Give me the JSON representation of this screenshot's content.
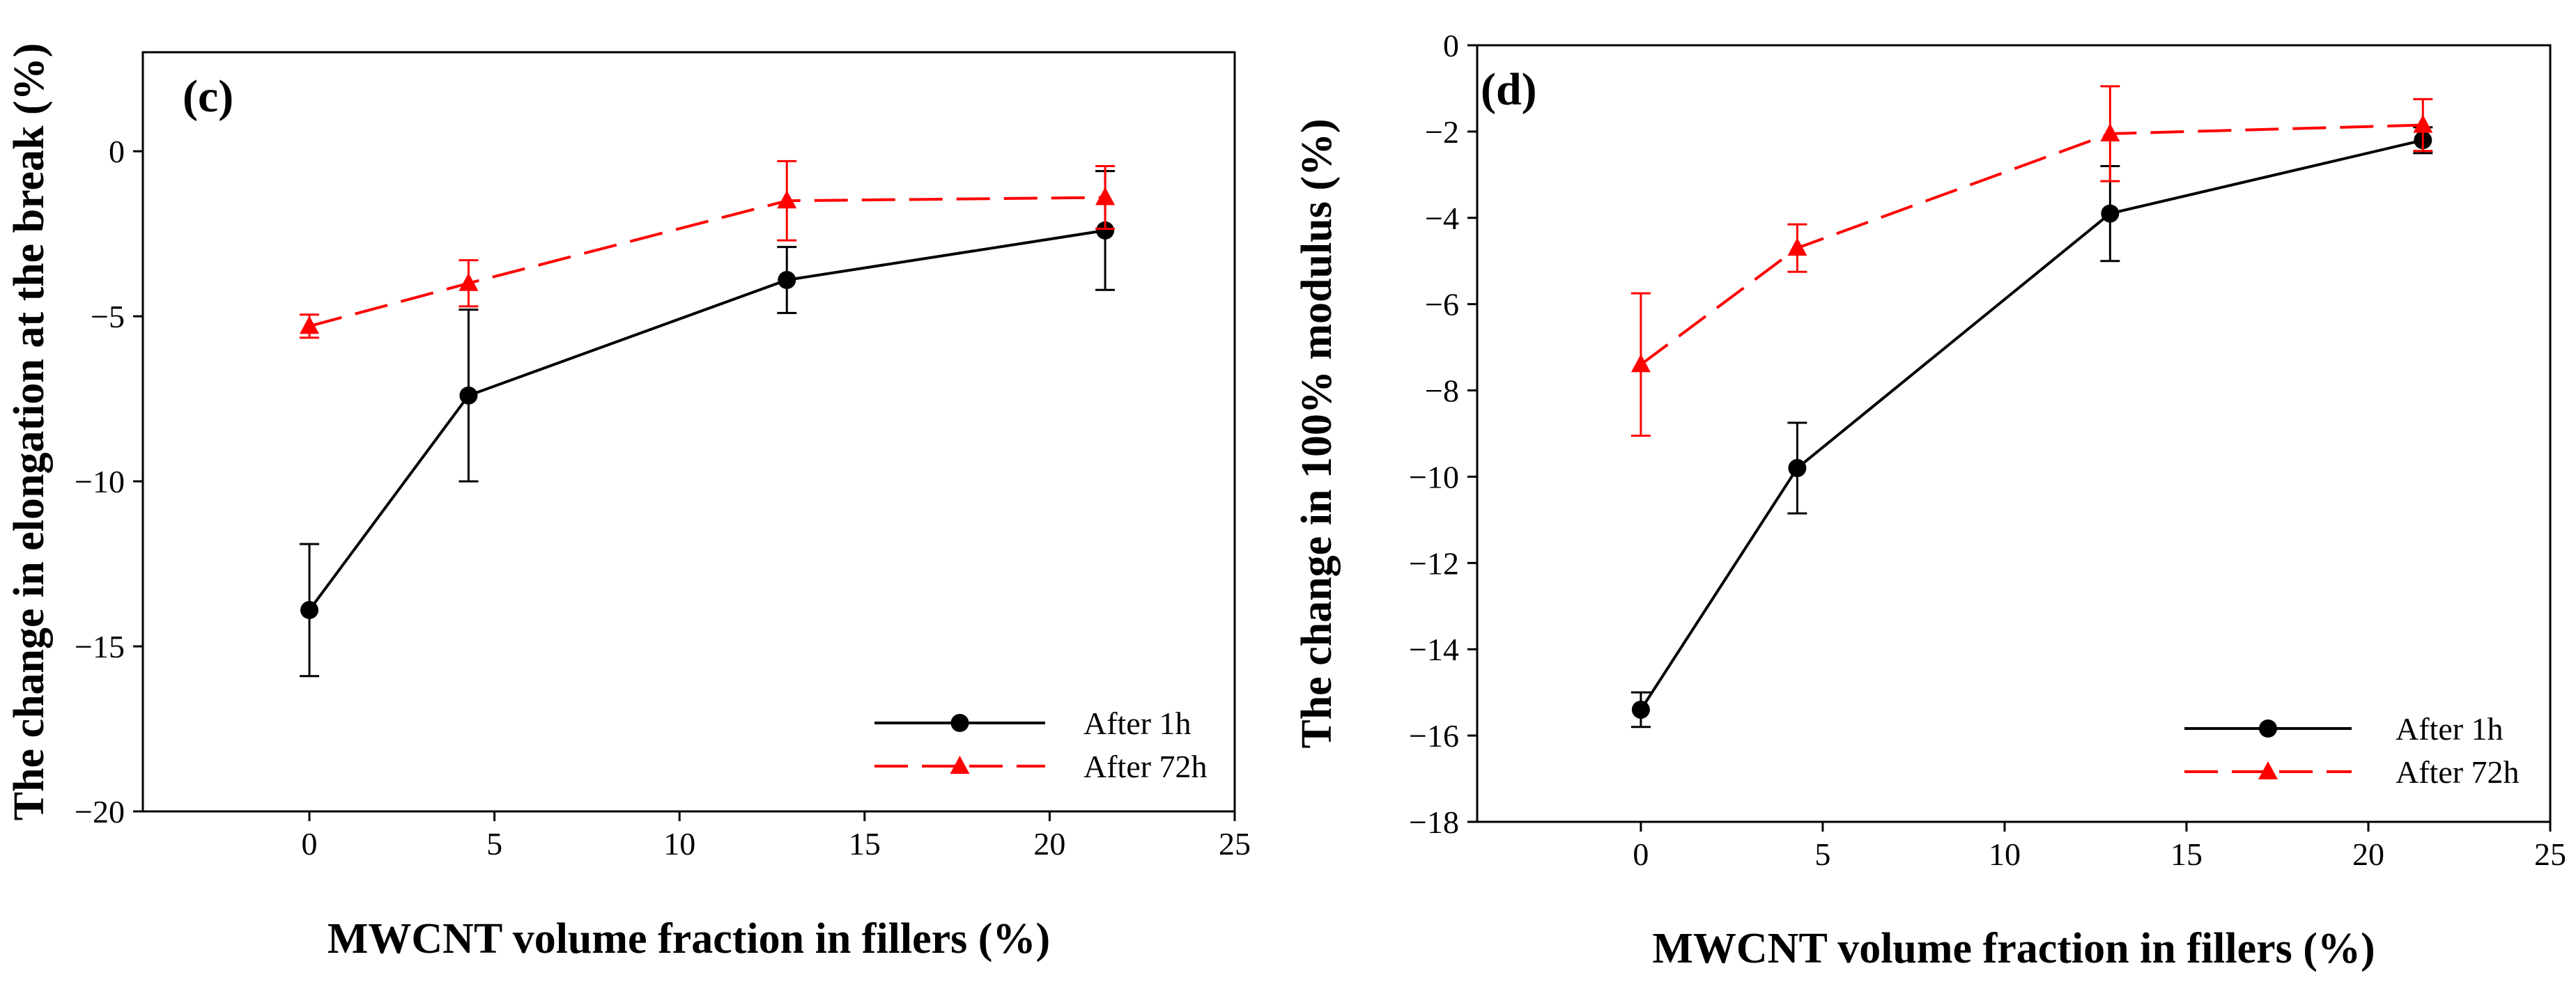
{
  "chart_data": [
    {
      "type": "line",
      "panel_label": "(c)",
      "xlabel": "MWCNT volume fraction in fillers (%)",
      "ylabel": "The change in elongation at the break (%)",
      "xlim": [
        -4.5,
        25
      ],
      "ylim": [
        -20,
        3
      ],
      "xticks": [
        0,
        5,
        10,
        15,
        20,
        25
      ],
      "yticks": [
        -20,
        -15,
        -10,
        -5,
        0
      ],
      "xtick_labels": [
        "0",
        "5",
        "10",
        "15",
        "20",
        "25"
      ],
      "ytick_labels": [
        "−20",
        "−15",
        "−10",
        "−5",
        "0"
      ],
      "legend_position": "bottom-right",
      "series": [
        {
          "name": "After 1h",
          "color": "#000000",
          "line_style": "solid",
          "marker": "circle",
          "x": [
            0,
            4.3,
            12.9,
            21.5
          ],
          "y": [
            -13.9,
            -7.4,
            -3.9,
            -2.4
          ],
          "err": [
            2.0,
            2.6,
            1.0,
            1.8
          ]
        },
        {
          "name": "After 72h",
          "color": "#ff0000",
          "line_style": "dashed",
          "marker": "triangle",
          "x": [
            0,
            4.3,
            12.9,
            21.5
          ],
          "y": [
            -5.3,
            -4.0,
            -1.5,
            -1.4
          ],
          "err": [
            0.35,
            0.7,
            1.2,
            0.95
          ]
        }
      ]
    },
    {
      "type": "line",
      "panel_label": "(d)",
      "xlabel": "MWCNT volume fraction in fillers (%)",
      "ylabel": "The change in 100% modulus (%)",
      "xlim": [
        -4.5,
        25
      ],
      "ylim": [
        -18,
        0
      ],
      "xticks": [
        0,
        5,
        10,
        15,
        20,
        25
      ],
      "yticks": [
        -18,
        -16,
        -14,
        -12,
        -10,
        -8,
        -6,
        -4,
        -2,
        0
      ],
      "xtick_labels": [
        "0",
        "5",
        "10",
        "15",
        "20",
        "25"
      ],
      "ytick_labels": [
        "−18",
        "−16",
        "−14",
        "−12",
        "−10",
        "−8",
        "−6",
        "−4",
        "−2",
        "0"
      ],
      "legend_position": "bottom-right",
      "series": [
        {
          "name": "After 1h",
          "color": "#000000",
          "line_style": "solid",
          "marker": "circle",
          "x": [
            0,
            4.3,
            12.9,
            21.5
          ],
          "y": [
            -15.4,
            -9.8,
            -3.9,
            -2.2
          ],
          "err": [
            0.4,
            1.05,
            1.1,
            0.3
          ]
        },
        {
          "name": "After 72h",
          "color": "#ff0000",
          "line_style": "dashed",
          "marker": "triangle",
          "x": [
            0,
            4.3,
            12.9,
            21.5
          ],
          "y": [
            -7.4,
            -4.7,
            -2.05,
            -1.85
          ],
          "err": [
            1.65,
            0.55,
            1.1,
            0.6
          ]
        }
      ]
    }
  ]
}
